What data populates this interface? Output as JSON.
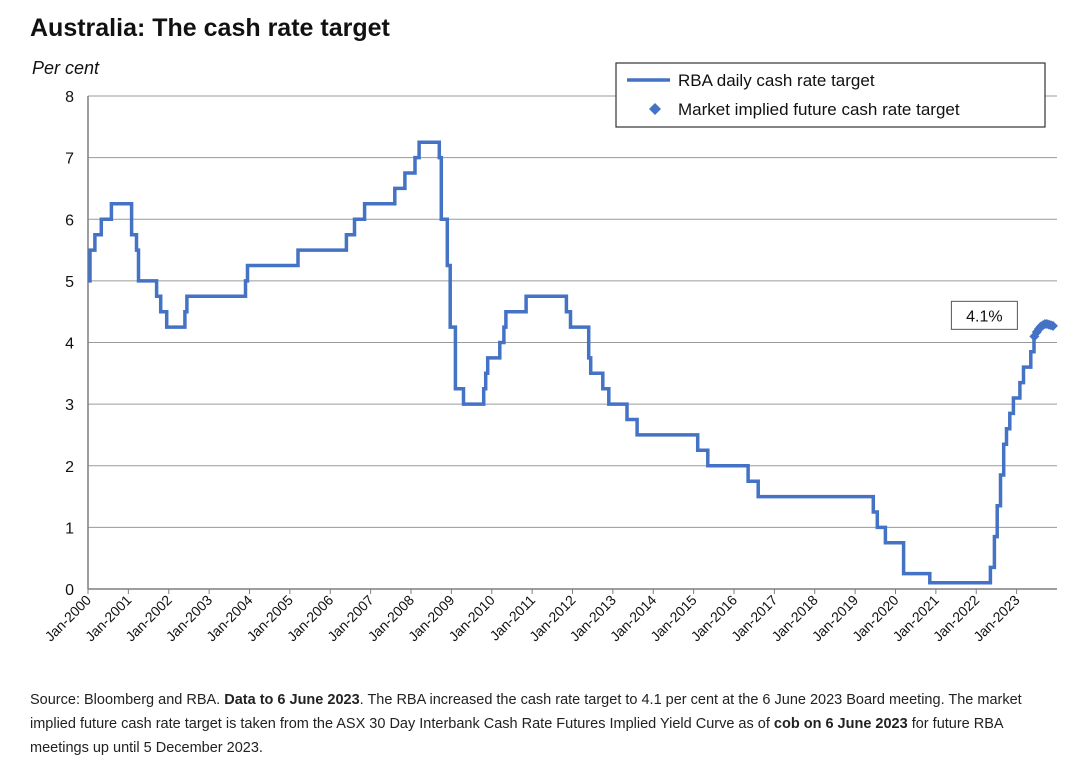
{
  "chart_data": {
    "type": "line",
    "title": "Australia: The cash rate target",
    "ylabel": "Per cent",
    "xlabel": "",
    "ylim": [
      0,
      8
    ],
    "yticks": [
      0,
      1,
      2,
      3,
      4,
      5,
      6,
      7,
      8
    ],
    "xlim": [
      2000.0,
      2024.0
    ],
    "xticks": [
      {
        "value": 2000,
        "label": "Jan-2000"
      },
      {
        "value": 2001,
        "label": "Jan-2001"
      },
      {
        "value": 2002,
        "label": "Jan-2002"
      },
      {
        "value": 2003,
        "label": "Jan-2003"
      },
      {
        "value": 2004,
        "label": "Jan-2004"
      },
      {
        "value": 2005,
        "label": "Jan-2005"
      },
      {
        "value": 2006,
        "label": "Jan-2006"
      },
      {
        "value": 2007,
        "label": "Jan-2007"
      },
      {
        "value": 2008,
        "label": "Jan-2008"
      },
      {
        "value": 2009,
        "label": "Jan-2009"
      },
      {
        "value": 2010,
        "label": "Jan-2010"
      },
      {
        "value": 2011,
        "label": "Jan-2011"
      },
      {
        "value": 2012,
        "label": "Jan-2012"
      },
      {
        "value": 2013,
        "label": "Jan-2013"
      },
      {
        "value": 2014,
        "label": "Jan-2014"
      },
      {
        "value": 2015,
        "label": "Jan-2015"
      },
      {
        "value": 2016,
        "label": "Jan-2016"
      },
      {
        "value": 2017,
        "label": "Jan-2017"
      },
      {
        "value": 2018,
        "label": "Jan-2018"
      },
      {
        "value": 2019,
        "label": "Jan-2019"
      },
      {
        "value": 2020,
        "label": "Jan-2020"
      },
      {
        "value": 2021,
        "label": "Jan-2021"
      },
      {
        "value": 2022,
        "label": "Jan-2022"
      },
      {
        "value": 2023,
        "label": "Jan-2023"
      }
    ],
    "grid": true,
    "legend_position": "top-right",
    "series": [
      {
        "name": "RBA daily cash rate target",
        "style": "step-line",
        "color": "#4472C4",
        "points": [
          [
            2000.0,
            5.0
          ],
          [
            2000.05,
            5.5
          ],
          [
            2000.17,
            5.75
          ],
          [
            2000.33,
            6.0
          ],
          [
            2000.58,
            6.25
          ],
          [
            2001.08,
            5.75
          ],
          [
            2001.2,
            5.5
          ],
          [
            2001.25,
            5.0
          ],
          [
            2001.7,
            4.75
          ],
          [
            2001.8,
            4.5
          ],
          [
            2001.95,
            4.25
          ],
          [
            2002.4,
            4.5
          ],
          [
            2002.45,
            4.75
          ],
          [
            2003.9,
            5.0
          ],
          [
            2003.95,
            5.25
          ],
          [
            2005.2,
            5.5
          ],
          [
            2006.4,
            5.75
          ],
          [
            2006.6,
            6.0
          ],
          [
            2006.85,
            6.25
          ],
          [
            2007.6,
            6.5
          ],
          [
            2007.85,
            6.75
          ],
          [
            2008.1,
            7.0
          ],
          [
            2008.2,
            7.25
          ],
          [
            2008.7,
            7.0
          ],
          [
            2008.75,
            6.0
          ],
          [
            2008.9,
            5.25
          ],
          [
            2008.97,
            4.25
          ],
          [
            2009.1,
            3.25
          ],
          [
            2009.3,
            3.0
          ],
          [
            2009.8,
            3.25
          ],
          [
            2009.85,
            3.5
          ],
          [
            2009.9,
            3.75
          ],
          [
            2010.2,
            4.0
          ],
          [
            2010.3,
            4.25
          ],
          [
            2010.35,
            4.5
          ],
          [
            2010.85,
            4.75
          ],
          [
            2011.85,
            4.5
          ],
          [
            2011.95,
            4.25
          ],
          [
            2012.4,
            3.75
          ],
          [
            2012.45,
            3.5
          ],
          [
            2012.75,
            3.25
          ],
          [
            2012.9,
            3.0
          ],
          [
            2013.35,
            2.75
          ],
          [
            2013.6,
            2.5
          ],
          [
            2015.1,
            2.25
          ],
          [
            2015.35,
            2.0
          ],
          [
            2016.35,
            1.75
          ],
          [
            2016.6,
            1.5
          ],
          [
            2019.45,
            1.25
          ],
          [
            2019.55,
            1.0
          ],
          [
            2019.75,
            0.75
          ],
          [
            2020.2,
            0.25
          ],
          [
            2020.85,
            0.1
          ],
          [
            2022.35,
            0.35
          ],
          [
            2022.45,
            0.85
          ],
          [
            2022.52,
            1.35
          ],
          [
            2022.6,
            1.85
          ],
          [
            2022.68,
            2.35
          ],
          [
            2022.75,
            2.6
          ],
          [
            2022.83,
            2.85
          ],
          [
            2022.92,
            3.1
          ],
          [
            2023.08,
            3.35
          ],
          [
            2023.17,
            3.6
          ],
          [
            2023.35,
            3.85
          ],
          [
            2023.43,
            4.1
          ]
        ],
        "end_x": 2023.44
      },
      {
        "name": "Market implied future cash rate target",
        "style": "markers",
        "marker": "diamond",
        "color": "#4472C4",
        "points": [
          [
            2023.44,
            4.1
          ],
          [
            2023.5,
            4.17
          ],
          [
            2023.55,
            4.22
          ],
          [
            2023.6,
            4.26
          ],
          [
            2023.65,
            4.28
          ],
          [
            2023.7,
            4.3
          ],
          [
            2023.75,
            4.3
          ],
          [
            2023.8,
            4.29
          ],
          [
            2023.85,
            4.28
          ],
          [
            2023.9,
            4.27
          ]
        ]
      }
    ],
    "annotations": [
      {
        "text": "4.1%",
        "x": 2023.44,
        "y": 4.1
      }
    ],
    "source_note": {
      "part1": "Source: Bloomberg and RBA. ",
      "bold1": "Data to 6 June 2023",
      "part2": ".  The RBA increased the cash rate target to 4.1 per cent at the 6 June 2023 Board meeting. The market implied future cash rate target is taken from the ASX 30 Day Interbank Cash Rate Futures Implied Yield Curve as of ",
      "bold2": "cob on 6 June 2023",
      "part3": " for future RBA meetings up until 5 December 2023."
    }
  }
}
